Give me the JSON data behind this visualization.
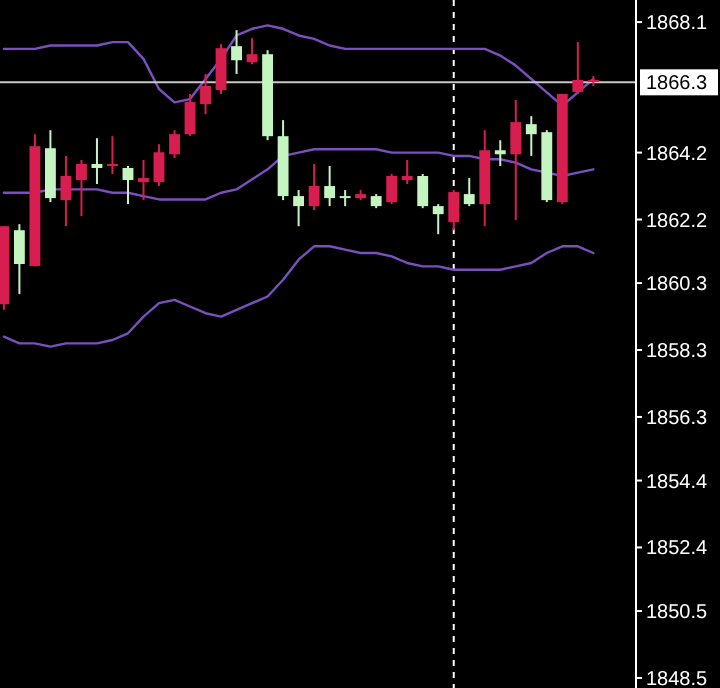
{
  "chart_data": {
    "type": "candlestick",
    "categories": [
      null,
      null,
      null,
      null,
      null,
      null,
      null,
      null,
      null,
      null,
      null,
      null,
      null,
      null,
      null,
      null,
      null,
      null,
      null,
      null,
      null,
      null,
      null,
      null,
      null,
      null,
      null,
      null,
      null,
      null,
      null,
      null,
      null,
      null,
      null,
      null,
      null,
      null,
      null
    ],
    "ohlc": [
      [
        1859.67,
        1862.0,
        1859.5,
        1862.0
      ],
      [
        1861.88,
        1862.06,
        1859.97,
        1860.87
      ],
      [
        1860.81,
        1864.75,
        1860.8,
        1864.39
      ],
      [
        1864.33,
        1864.87,
        1862.72,
        1862.84
      ],
      [
        1862.78,
        1864.1,
        1862.0,
        1863.5
      ],
      [
        1863.38,
        1863.98,
        1862.3,
        1863.86
      ],
      [
        1863.86,
        1864.63,
        1863.26,
        1863.74
      ],
      [
        1863.8,
        1864.69,
        1863.56,
        1863.86
      ],
      [
        1863.74,
        1863.8,
        1862.66,
        1863.38
      ],
      [
        1863.32,
        1863.98,
        1862.78,
        1863.44
      ],
      [
        1863.32,
        1864.45,
        1863.2,
        1864.21
      ],
      [
        1864.15,
        1864.87,
        1864.04,
        1864.75
      ],
      [
        1864.75,
        1865.95,
        1864.7,
        1865.71
      ],
      [
        1865.65,
        1866.55,
        1865.35,
        1866.19
      ],
      [
        1866.07,
        1867.44,
        1865.95,
        1867.32
      ],
      [
        1867.38,
        1867.86,
        1866.55,
        1866.96
      ],
      [
        1866.9,
        1867.62,
        1866.84,
        1867.14
      ],
      [
        1867.14,
        1867.26,
        1864.57,
        1864.69
      ],
      [
        1864.69,
        1865.17,
        1862.78,
        1862.9
      ],
      [
        1862.9,
        1863.08,
        1862.0,
        1862.6
      ],
      [
        1862.6,
        1863.86,
        1862.48,
        1863.2
      ],
      [
        1863.2,
        1863.8,
        1862.6,
        1862.84
      ],
      [
        1862.9,
        1863.08,
        1862.6,
        1862.84
      ],
      [
        1862.84,
        1863.08,
        1862.78,
        1862.96
      ],
      [
        1862.9,
        1862.96,
        1862.54,
        1862.6
      ],
      [
        1862.72,
        1863.56,
        1862.66,
        1863.5
      ],
      [
        1863.38,
        1863.98,
        1863.26,
        1863.5
      ],
      [
        1863.5,
        1863.56,
        1862.54,
        1862.6
      ],
      [
        1862.6,
        1862.66,
        1861.76,
        1862.36
      ],
      [
        1862.12,
        1863.08,
        1861.88,
        1863.02
      ],
      [
        1862.96,
        1863.44,
        1862.6,
        1862.66
      ],
      [
        1862.66,
        1864.87,
        1862.0,
        1864.27
      ],
      [
        1864.27,
        1864.57,
        1863.8,
        1864.15
      ],
      [
        1864.15,
        1865.77,
        1862.18,
        1865.11
      ],
      [
        1865.05,
        1865.29,
        1864.1,
        1864.75
      ],
      [
        1864.81,
        1864.87,
        1862.72,
        1862.78
      ],
      [
        1862.72,
        1865.95,
        1862.66,
        1865.95
      ],
      [
        1866.01,
        1867.5,
        1865.95,
        1866.37
      ],
      [
        1866.37,
        1866.49,
        1866.19,
        1866.37
      ]
    ],
    "colors": [
      "#d81e50",
      "#c4f5c0",
      "#d81e50",
      "#c4f5c0",
      "#d81e50",
      "#d81e50",
      "#c4f5c0",
      "#d81e50",
      "#c4f5c0",
      "#d81e50",
      "#d81e50",
      "#d81e50",
      "#d81e50",
      "#d81e50",
      "#d81e50",
      "#c4f5c0",
      "#d81e50",
      "#c4f5c0",
      "#c4f5c0",
      "#c4f5c0",
      "#d81e50",
      "#c4f5c0",
      "#c4f5c0",
      "#d81e50",
      "#c4f5c0",
      "#d81e50",
      "#d81e50",
      "#c4f5c0",
      "#c4f5c0",
      "#d81e50",
      "#c4f5c0",
      "#d81e50",
      "#c4f5c0",
      "#d81e50",
      "#c4f5c0",
      "#c4f5c0",
      "#d81e50",
      "#d81e50",
      "#d81e50"
    ],
    "series": [
      {
        "type": "line",
        "color": "#7b4fc0",
        "values": [
          1867.3,
          1867.3,
          1867.3,
          1867.4,
          1867.4,
          1867.4,
          1867.4,
          1867.5,
          1867.5,
          1867.0,
          1866.1,
          1865.7,
          1865.8,
          1866.4,
          1867.0,
          1867.7,
          1867.9,
          1868.0,
          1867.9,
          1867.7,
          1867.6,
          1867.4,
          1867.3,
          1867.3,
          1867.3,
          1867.3,
          1867.3,
          1867.3,
          1867.3,
          1867.3,
          1867.3,
          1867.3,
          1867.1,
          1866.8,
          1866.4,
          1866.0,
          1865.6,
          1866.0,
          1866.4
        ]
      },
      {
        "type": "line",
        "color": "#7b4fc0",
        "values": [
          1863.0,
          1863.0,
          1863.0,
          1863.1,
          1863.1,
          1863.1,
          1863.1,
          1863.0,
          1863.0,
          1862.9,
          1862.8,
          1862.8,
          1862.8,
          1862.8,
          1863.0,
          1863.1,
          1863.4,
          1863.7,
          1864.1,
          1864.2,
          1864.3,
          1864.3,
          1864.3,
          1864.3,
          1864.3,
          1864.2,
          1864.2,
          1864.2,
          1864.2,
          1864.1,
          1864.1,
          1864.0,
          1864.0,
          1863.9,
          1863.7,
          1863.6,
          1863.5,
          1863.6,
          1863.7
        ]
      },
      {
        "type": "line",
        "color": "#7b4fc0",
        "values": [
          1858.7,
          1858.5,
          1858.5,
          1858.4,
          1858.5,
          1858.5,
          1858.5,
          1858.6,
          1858.8,
          1859.3,
          1859.7,
          1859.8,
          1859.6,
          1859.4,
          1859.3,
          1859.5,
          1859.7,
          1859.9,
          1860.4,
          1861.0,
          1861.4,
          1861.4,
          1861.3,
          1861.2,
          1861.2,
          1861.1,
          1860.9,
          1860.8,
          1860.8,
          1860.7,
          1860.7,
          1860.7,
          1860.7,
          1860.8,
          1860.9,
          1861.2,
          1861.4,
          1861.4,
          1861.2
        ]
      }
    ],
    "ylim": [
      1848.2,
      1868.76
    ],
    "yticks": [
      1848.5,
      1850.5,
      1852.4,
      1854.4,
      1856.3,
      1858.3,
      1860.3,
      1862.2,
      1864.2,
      1868.1
    ],
    "ref_lines": [
      {
        "axis": "y",
        "value": 1866.3,
        "label": "1866.3",
        "color": "#c8c8c8"
      }
    ],
    "grid": false,
    "tick_labels": "y"
  }
}
